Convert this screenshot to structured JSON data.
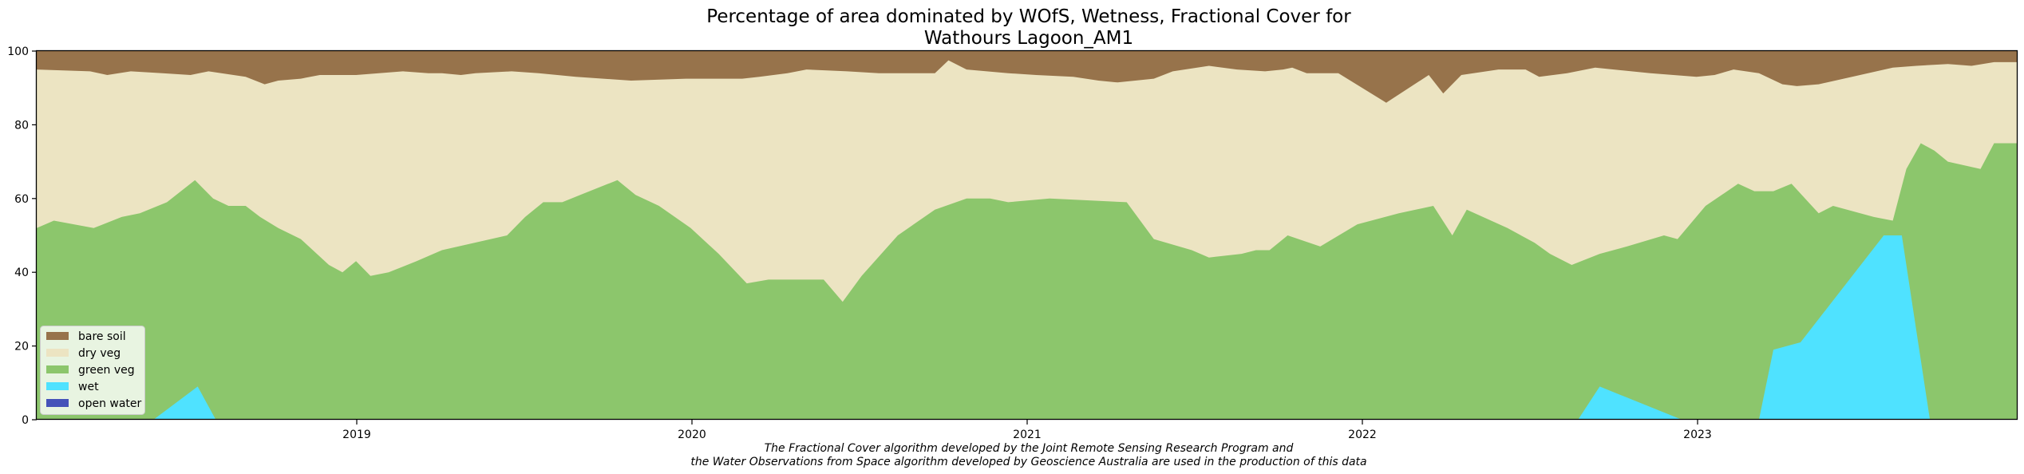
{
  "chart_data": {
    "type": "area",
    "stacked": true,
    "title_lines": [
      "Percentage of area dominated by WOfS, Wetness, Fractional Cover for",
      "Wathours Lagoon_AM1"
    ],
    "xlabel": "",
    "ylabel": "",
    "xlim": [
      "2018-01-01",
      "2023-12-31"
    ],
    "ylim": [
      0,
      100
    ],
    "x_ticks": [
      "2019-01-01",
      "2020-01-01",
      "2021-01-01",
      "2022-01-01",
      "2023-01-01"
    ],
    "x_tick_labels": [
      "2019",
      "2020",
      "2021",
      "2022",
      "2023"
    ],
    "y_ticks": [
      0,
      20,
      40,
      60,
      80,
      100
    ],
    "grid": false,
    "legend_position": "lower left",
    "series_order_bottom_to_top": [
      "open water",
      "wet",
      "green veg",
      "dry veg",
      "bare soil"
    ],
    "series": [
      {
        "name": "open water",
        "color": "#4552b9",
        "points": [
          [
            "2018-01-01",
            0
          ],
          [
            "2023-12-31",
            0
          ]
        ]
      },
      {
        "name": "wet",
        "color": "#4fe2ff",
        "points": [
          [
            "2018-01-01",
            0
          ],
          [
            "2018-05-10",
            0
          ],
          [
            "2018-06-28",
            9
          ],
          [
            "2018-07-18",
            0
          ],
          [
            "2022-09-01",
            0
          ],
          [
            "2022-09-25",
            9
          ],
          [
            "2022-12-25",
            0
          ],
          [
            "2023-03-20",
            0
          ],
          [
            "2023-04-05",
            19
          ],
          [
            "2023-05-05",
            21
          ],
          [
            "2023-08-05",
            50
          ],
          [
            "2023-08-25",
            50
          ],
          [
            "2023-09-25",
            0
          ],
          [
            "2023-12-31",
            0
          ]
        ]
      },
      {
        "name": "green veg",
        "color": "#8cc66c",
        "cumulative_top": [
          [
            "2018-01-01",
            52
          ],
          [
            "2018-01-20",
            54
          ],
          [
            "2018-03-05",
            52
          ],
          [
            "2018-04-05",
            55
          ],
          [
            "2018-04-25",
            56
          ],
          [
            "2018-05-25",
            59
          ],
          [
            "2018-06-25",
            65
          ],
          [
            "2018-07-15",
            60
          ],
          [
            "2018-08-01",
            58
          ],
          [
            "2018-08-20",
            58
          ],
          [
            "2018-09-05",
            55
          ],
          [
            "2018-09-25",
            52
          ],
          [
            "2018-10-20",
            49
          ],
          [
            "2018-11-20",
            42
          ],
          [
            "2018-12-05",
            40
          ],
          [
            "2018-12-20",
            43
          ],
          [
            "2019-01-05",
            39
          ],
          [
            "2019-01-25",
            40
          ],
          [
            "2019-02-25",
            43
          ],
          [
            "2019-03-25",
            46
          ],
          [
            "2019-06-05",
            50
          ],
          [
            "2019-06-25",
            55
          ],
          [
            "2019-07-15",
            59
          ],
          [
            "2019-08-05",
            59
          ],
          [
            "2019-08-25",
            61
          ],
          [
            "2019-10-05",
            65
          ],
          [
            "2019-10-25",
            61
          ],
          [
            "2019-11-20",
            58
          ],
          [
            "2019-12-25",
            52
          ],
          [
            "2020-01-25",
            45
          ],
          [
            "2020-02-25",
            37
          ],
          [
            "2020-03-20",
            38
          ],
          [
            "2020-05-20",
            38
          ],
          [
            "2020-06-10",
            32
          ],
          [
            "2020-07-01",
            39
          ],
          [
            "2020-08-10",
            50
          ],
          [
            "2020-09-20",
            57
          ],
          [
            "2020-10-25",
            60
          ],
          [
            "2020-11-20",
            60
          ],
          [
            "2020-12-10",
            59
          ],
          [
            "2021-01-25",
            60
          ],
          [
            "2021-04-20",
            59
          ],
          [
            "2021-05-20",
            49
          ],
          [
            "2021-07-01",
            46
          ],
          [
            "2021-07-20",
            44
          ],
          [
            "2021-08-25",
            45
          ],
          [
            "2021-09-10",
            46
          ],
          [
            "2021-09-25",
            46
          ],
          [
            "2021-10-15",
            50
          ],
          [
            "2021-11-20",
            47
          ],
          [
            "2021-12-31",
            53
          ],
          [
            "2022-02-15",
            56
          ],
          [
            "2022-03-25",
            58
          ],
          [
            "2022-04-15",
            50
          ],
          [
            "2022-05-01",
            57
          ],
          [
            "2022-06-15",
            52
          ],
          [
            "2022-07-15",
            48
          ],
          [
            "2022-08-01",
            45
          ],
          [
            "2022-08-25",
            42
          ],
          [
            "2022-09-25",
            45
          ],
          [
            "2022-10-25",
            47
          ],
          [
            "2022-12-05",
            50
          ],
          [
            "2022-12-20",
            49
          ],
          [
            "2023-01-20",
            58
          ],
          [
            "2023-02-25",
            64
          ],
          [
            "2023-03-15",
            62
          ],
          [
            "2023-04-05",
            62
          ],
          [
            "2023-04-25",
            64
          ],
          [
            "2023-05-25",
            56
          ],
          [
            "2023-06-10",
            58
          ],
          [
            "2023-07-25",
            55
          ],
          [
            "2023-08-15",
            54
          ],
          [
            "2023-08-30",
            68
          ],
          [
            "2023-09-15",
            75
          ],
          [
            "2023-09-30",
            73
          ],
          [
            "2023-10-15",
            70
          ],
          [
            "2023-11-20",
            68
          ],
          [
            "2023-12-05",
            75
          ],
          [
            "2023-12-31",
            75
          ]
        ]
      }
    ]
  },
  "legend": {
    "items": [
      {
        "label": "bare soil",
        "color": "#97734b"
      },
      {
        "label": "dry veg",
        "color": "#ece4c2"
      },
      {
        "label": "green veg",
        "color": "#8cc66c"
      },
      {
        "label": "wet",
        "color": "#4fe2ff"
      },
      {
        "label": "open water",
        "color": "#4552b9"
      }
    ]
  },
  "caption": {
    "line1": "The Fractional Cover algorithm developed by the Joint Remote Sensing Research Program and",
    "line2": "the Water Observations from Space algorithm developed by Geoscience Australia are used in the production of this data"
  }
}
